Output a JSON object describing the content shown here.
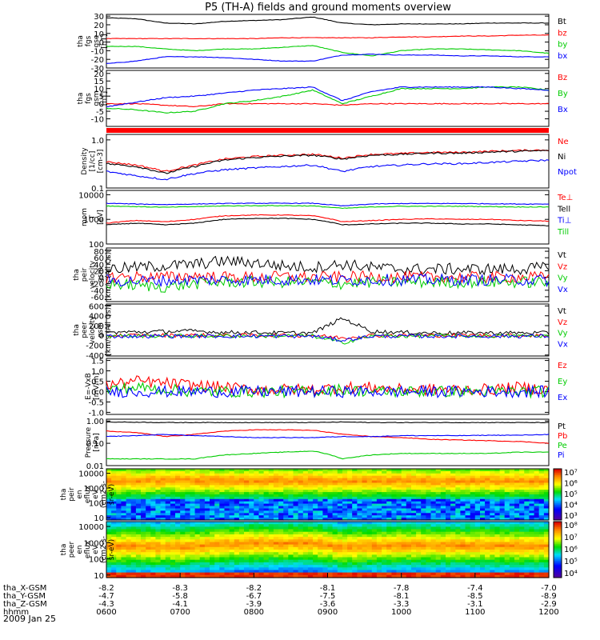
{
  "title": "P5 (TH-A) fields and ground moments overview",
  "date_label": "2009 Jan 25",
  "chart_data": {
    "type": "line",
    "x_axis": {
      "label": "hhmm",
      "ticks": [
        "0600",
        "0700",
        "0800",
        "0900",
        "1000",
        "1100",
        "1200"
      ],
      "rows": [
        {
          "name": "tha_X-GSM",
          "values": [
            "-8.2",
            "-8.3",
            "-8.2",
            "-8.1",
            "-7.8",
            "-7.4",
            "-7.0"
          ]
        },
        {
          "name": "tha_Y-GSM",
          "values": [
            "-4.7",
            "-5.8",
            "-6.7",
            "-7.5",
            "-8.1",
            "-8.5",
            "-8.9"
          ]
        },
        {
          "name": "tha_Z-GSM",
          "values": [
            "-4.3",
            "-4.1",
            "-3.9",
            "-3.6",
            "-3.3",
            "-3.1",
            "-2.9"
          ]
        }
      ]
    },
    "panels": [
      {
        "id": "fgs-gse",
        "ylabel": [
          "tha",
          "fgs",
          "gse",
          "[nT]"
        ],
        "ylim": [
          -30,
          32
        ],
        "yticks": [
          [
            "30",
            30
          ],
          [
            "20",
            20
          ],
          [
            "10",
            10
          ],
          [
            "0",
            0
          ],
          [
            "-10",
            -10
          ],
          [
            "-20",
            -20
          ],
          [
            "-30",
            -30
          ]
        ],
        "series": [
          {
            "name": "Bt",
            "color": "#000000",
            "values": [
              28,
              27,
              22,
              21,
              24,
              25,
              26,
              29,
              22,
              20,
              21,
              21,
              21,
              22,
              22,
              22
            ]
          },
          {
            "name": "bz",
            "color": "#ff0000",
            "values": [
              4,
              4,
              4,
              4,
              4,
              4,
              5,
              5,
              5,
              5,
              6,
              6,
              7,
              7,
              8,
              8
            ]
          },
          {
            "name": "by",
            "color": "#00cc00",
            "values": [
              -5,
              -5,
              -8,
              -10,
              -8,
              -8,
              -6,
              -4,
              -12,
              -16,
              -10,
              -8,
              -8,
              -9,
              -10,
              -13
            ]
          },
          {
            "name": "bx",
            "color": "#0000ff",
            "values": [
              -25,
              -22,
              -17,
              -17,
              -18,
              -20,
              -22,
              -22,
              -15,
              -14,
              -15,
              -15,
              -16,
              -16,
              -17,
              -17
            ]
          }
        ]
      },
      {
        "id": "fgs-gsm",
        "ylabel": [
          "tha",
          "fgs",
          "gsm",
          "[nT]"
        ],
        "ylim": [
          -15,
          22
        ],
        "yticks": [
          [
            "20",
            20
          ],
          [
            "15",
            15
          ],
          [
            "10",
            10
          ],
          [
            "5",
            5
          ],
          [
            "0",
            0
          ],
          [
            "-5",
            -5
          ],
          [
            "-10",
            -10
          ]
        ],
        "series": [
          {
            "name": "Bz",
            "color": "#ff0000",
            "values": [
              0,
              0,
              -1,
              -2,
              0,
              0,
              0,
              0,
              -1,
              0,
              0,
              0,
              0,
              0,
              0,
              0
            ]
          },
          {
            "name": "By",
            "color": "#00cc00",
            "values": [
              -3,
              -4,
              -6,
              -5,
              0,
              2,
              5,
              9,
              0,
              5,
              10,
              10,
              10,
              11,
              11,
              9
            ]
          },
          {
            "name": "Bx",
            "color": "#0000ff",
            "values": [
              -2,
              1,
              4,
              5,
              7,
              9,
              10,
              11,
              2,
              8,
              11,
              11,
              11,
              11,
              10,
              9
            ]
          }
        ]
      },
      {
        "id": "density",
        "ylabel": [
          "Density",
          "[1/cc]",
          "[cm-3]"
        ],
        "ylim": [
          0.1,
          1.3
        ],
        "log": true,
        "yticks": [
          [
            "1.0",
            1.0
          ],
          [
            "0.1",
            0.1
          ]
        ],
        "series": [
          {
            "name": "Ne",
            "color": "#ff0000",
            "values": [
              0.35,
              0.3,
              0.22,
              0.3,
              0.4,
              0.45,
              0.48,
              0.5,
              0.42,
              0.5,
              0.52,
              0.55,
              0.55,
              0.58,
              0.6,
              0.62
            ]
          },
          {
            "name": "Ni",
            "color": "#000000",
            "values": [
              0.32,
              0.28,
              0.2,
              0.28,
              0.38,
              0.43,
              0.46,
              0.48,
              0.4,
              0.48,
              0.5,
              0.53,
              0.53,
              0.56,
              0.58,
              0.6
            ]
          },
          {
            "name": "Npot",
            "color": "#0000ff",
            "values": [
              0.22,
              0.18,
              0.15,
              0.2,
              0.24,
              0.26,
              0.28,
              0.3,
              0.22,
              0.28,
              0.3,
              0.32,
              0.32,
              0.34,
              0.36,
              0.38
            ]
          }
        ]
      },
      {
        "id": "mom-temp",
        "ylabel": [
          "mom",
          "T",
          "[eV]"
        ],
        "ylim": [
          100,
          15000
        ],
        "log": true,
        "yticks": [
          [
            "10000",
            10000
          ],
          [
            "1000",
            1000
          ],
          [
            "100",
            100
          ]
        ],
        "series": [
          {
            "name": "Te⊥",
            "color": "#ff0000",
            "values": [
              700,
              900,
              800,
              1000,
              1400,
              1500,
              1500,
              1400,
              800,
              900,
              1000,
              1050,
              1000,
              1000,
              900,
              850
            ]
          },
          {
            "name": "Tell",
            "color": "#000000",
            "values": [
              600,
              700,
              600,
              700,
              1000,
              1100,
              1100,
              1000,
              600,
              650,
              700,
              700,
              650,
              650,
              600,
              550
            ]
          },
          {
            "name": "Ti⊥",
            "color": "#0000ff",
            "values": [
              4500,
              4200,
              4000,
              4200,
              4400,
              4500,
              4500,
              4500,
              3500,
              4200,
              4400,
              4400,
              4400,
              4300,
              4200,
              4200
            ]
          },
          {
            "name": "Till",
            "color": "#00cc00",
            "values": [
              3500,
              3300,
              3100,
              3300,
              3500,
              3600,
              3600,
              3500,
              2800,
              3200,
              3400,
              3400,
              3400,
              3300,
              3200,
              3200
            ]
          }
        ]
      },
      {
        "id": "peir-velocity",
        "ylabel": [
          "tha",
          "peir",
          "velocity",
          "gsm",
          "[km/s (All Qs)]"
        ],
        "ylim": [
          -75,
          90
        ],
        "yticks": [
          [
            "80",
            80
          ],
          [
            "60",
            60
          ],
          [
            "40",
            40
          ],
          [
            "20",
            20
          ],
          [
            "0",
            0
          ],
          [
            "-20",
            -20
          ],
          [
            "-40",
            -40
          ],
          [
            "-60",
            -60
          ]
        ],
        "series": [
          {
            "name": "Vt",
            "color": "#000000",
            "values": [
              25,
              30,
              35,
              40,
              50,
              45,
              35,
              30,
              40,
              30,
              25,
              25,
              25,
              25,
              25,
              30
            ]
          },
          {
            "name": "Vz",
            "color": "#ff0000",
            "values": [
              0,
              2,
              0,
              5,
              0,
              0,
              2,
              0,
              0,
              2,
              0,
              0,
              0,
              0,
              0,
              0
            ]
          },
          {
            "name": "Vy",
            "color": "#00cc00",
            "values": [
              -20,
              -25,
              -30,
              -20,
              -15,
              -15,
              -15,
              -15,
              -20,
              -15,
              -15,
              -15,
              -15,
              -15,
              -15,
              -15
            ]
          },
          {
            "name": "Vx",
            "color": "#0000ff",
            "values": [
              -10,
              -12,
              -10,
              -8,
              -8,
              -8,
              -8,
              -8,
              -10,
              -8,
              -8,
              -8,
              -8,
              -8,
              -8,
              -10
            ]
          }
        ]
      },
      {
        "id": "peer-velocity",
        "ylabel": [
          "tha",
          "peer",
          "velocity",
          "gsm",
          "[km/s (All Qs)]"
        ],
        "ylim": [
          -420,
          640
        ],
        "yticks": [
          [
            "600",
            600
          ],
          [
            "400",
            400
          ],
          [
            "200",
            200
          ],
          [
            "0",
            0
          ],
          [
            "-200",
            -200
          ],
          [
            "-400",
            -400
          ]
        ],
        "series": [
          {
            "name": "Vt",
            "color": "#000000",
            "values": [
              60,
              70,
              80,
              90,
              60,
              60,
              50,
              50,
              350,
              80,
              60,
              50,
              50,
              50,
              50,
              50
            ]
          },
          {
            "name": "Vz",
            "color": "#ff0000",
            "values": [
              0,
              0,
              0,
              5,
              0,
              0,
              0,
              0,
              -50,
              0,
              0,
              0,
              0,
              0,
              0,
              0
            ]
          },
          {
            "name": "Vy",
            "color": "#00cc00",
            "values": [
              -10,
              -10,
              -10,
              -10,
              -10,
              -10,
              -10,
              -10,
              -150,
              -10,
              -10,
              -10,
              -10,
              -10,
              -10,
              -10
            ]
          },
          {
            "name": "Vx",
            "color": "#0000ff",
            "values": [
              -15,
              -15,
              -15,
              -15,
              -15,
              -15,
              -15,
              -15,
              -100,
              -15,
              -15,
              -15,
              -15,
              -15,
              -15,
              -15
            ]
          }
        ]
      },
      {
        "id": "efield",
        "ylabel": [
          "E=-VxB",
          "[mV/m]"
        ],
        "ylim": [
          -1.1,
          1.6
        ],
        "yticks": [
          [
            "1.5",
            1.5
          ],
          [
            "1.0",
            1.0
          ],
          [
            "0.5",
            0.5
          ],
          [
            "0.0",
            0.0
          ],
          [
            "-0.5",
            -0.5
          ],
          [
            "-1.0",
            -1.0
          ]
        ],
        "series": [
          {
            "name": "Ez",
            "color": "#ff0000",
            "values": [
              0.3,
              0.5,
              0.4,
              0.3,
              0.2,
              0.1,
              0.1,
              0.1,
              0.2,
              0.2,
              0.1,
              0.1,
              0.1,
              0.1,
              0.2,
              0.1
            ]
          },
          {
            "name": "Ey",
            "color": "#00cc00",
            "values": [
              0.1,
              0.2,
              0.1,
              0.0,
              0.0,
              0.0,
              0.0,
              0.0,
              0.1,
              0.0,
              0.0,
              0.0,
              0.0,
              0.0,
              0.0,
              0.0
            ]
          },
          {
            "name": "Ex",
            "color": "#0000ff",
            "values": [
              0.0,
              0.0,
              0.0,
              0.0,
              0.0,
              0.0,
              0.0,
              0.0,
              0.0,
              0.0,
              0.0,
              0.0,
              0.0,
              0.0,
              0.0,
              0.0
            ]
          }
        ]
      },
      {
        "id": "pressure",
        "ylabel": [
          "Pressure",
          "[nPa]"
        ],
        "ylim": [
          0.01,
          1.2
        ],
        "log": true,
        "yticks": [
          [
            "1.00",
            1.0
          ],
          [
            "0.10",
            0.1
          ],
          [
            "0.01",
            0.01
          ]
        ],
        "series": [
          {
            "name": "Pt",
            "color": "#000000",
            "values": [
              0.9,
              0.88,
              0.85,
              0.85,
              0.85,
              0.85,
              0.85,
              0.85,
              0.9,
              0.85,
              0.85,
              0.85,
              0.85,
              0.85,
              0.85,
              0.85
            ]
          },
          {
            "name": "Pb",
            "color": "#ff0000",
            "values": [
              0.35,
              0.3,
              0.2,
              0.25,
              0.35,
              0.4,
              0.4,
              0.38,
              0.25,
              0.2,
              0.18,
              0.15,
              0.14,
              0.13,
              0.12,
              0.1
            ]
          },
          {
            "name": "Pe",
            "color": "#00cc00",
            "values": [
              0.02,
              0.02,
              0.02,
              0.02,
              0.03,
              0.035,
              0.04,
              0.045,
              0.02,
              0.03,
              0.035,
              0.035,
              0.035,
              0.035,
              0.04,
              0.04
            ]
          },
          {
            "name": "Pi",
            "color": "#0000ff",
            "values": [
              0.2,
              0.22,
              0.25,
              0.22,
              0.2,
              0.18,
              0.18,
              0.18,
              0.2,
              0.2,
              0.22,
              0.22,
              0.22,
              0.23,
              0.23,
              0.25
            ]
          }
        ]
      }
    ],
    "spectrograms": [
      {
        "id": "peir-spectrogram",
        "ylabel": [
          "tha",
          "peir",
          "en",
          "eflux",
          "eV",
          "(cm2-s-",
          "sr-eV)"
        ],
        "ylim": [
          7,
          20000
        ],
        "yticks": [
          [
            "10000",
            10000
          ],
          [
            "1000",
            1000
          ],
          [
            "100",
            100
          ],
          [
            "10",
            10
          ]
        ],
        "colorbar_labels": [
          "10⁷",
          "10⁶",
          "10⁵",
          "10⁴",
          "10³"
        ],
        "peak_energy": [
          3000,
          3000,
          3500,
          3200,
          3000,
          3000,
          3000,
          3000,
          2800,
          3000,
          3000,
          3000,
          3000,
          3000,
          3000,
          3000
        ]
      },
      {
        "id": "peer-spectrogram",
        "ylabel": [
          "tha",
          "peer",
          "en",
          "eflux",
          "eV",
          "(cm2-s-",
          "sr-eV)"
        ],
        "ylim": [
          7,
          20000
        ],
        "yticks": [
          [
            "10000",
            10000
          ],
          [
            "1000",
            1000
          ],
          [
            "100",
            100
          ],
          [
            "10",
            10
          ]
        ],
        "colorbar_labels": [
          "10⁸",
          "10⁷",
          "10⁶",
          "10⁵",
          "10⁴"
        ],
        "peak_energy": [
          600,
          600,
          500,
          600,
          800,
          900,
          900,
          900,
          500,
          600,
          700,
          700,
          650,
          650,
          600,
          600
        ]
      }
    ]
  }
}
